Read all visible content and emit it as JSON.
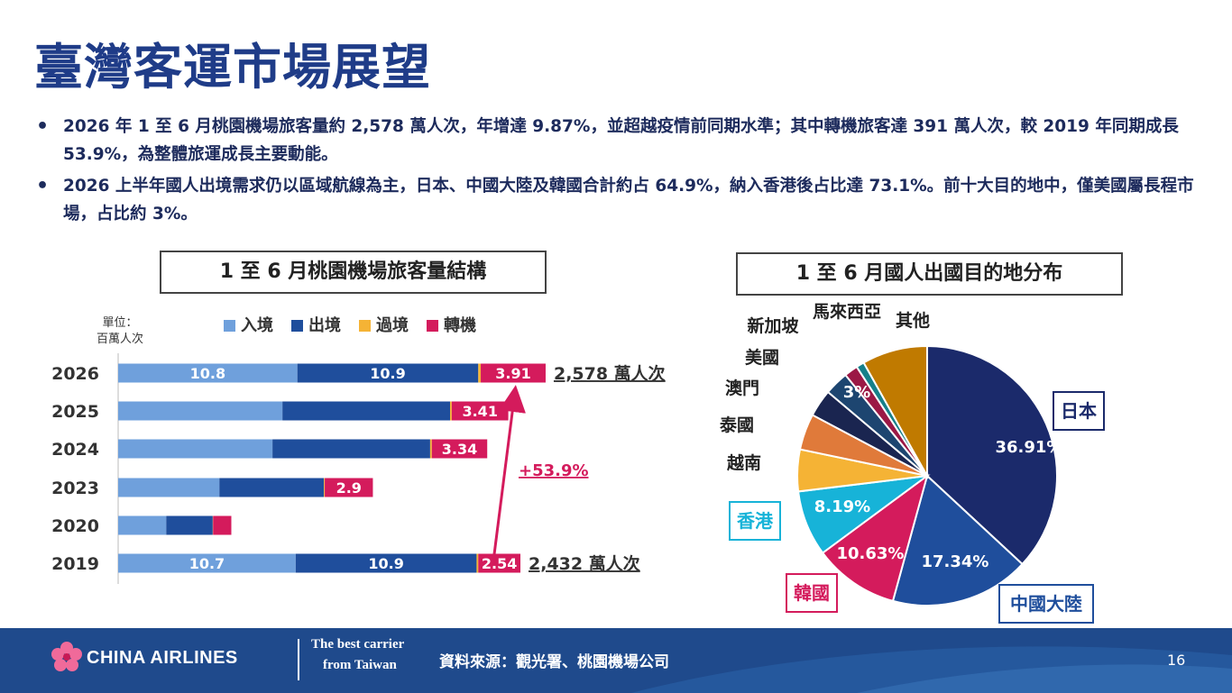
{
  "title": "臺灣客運市場展望",
  "bullets": [
    "2026 年 1 至 6 月桃園機場旅客量約 2,578 萬人次，年增達 9.87%，並超越疫情前同期水準；其中轉機旅客達 391 萬人次，較 2019 年同期成長 53.9%，為整體旅運成長主要動能。",
    "2026 上半年國人出境需求仍以區域航線為主，日本、中國大陸及韓國合計約占 64.9%，納入香港後占比達 73.1%。前十大目的地中，僅美國屬長程市場，占比約 3%。"
  ],
  "footer": {
    "logo": "CHINA AIRLINES",
    "tagline1": "The best carrier",
    "tagline2": "from Taiwan",
    "source": "資料來源：觀光署、桃園機場公司",
    "page": "16"
  },
  "colors": {
    "inbound": "#6fa0dc",
    "outbound": "#1f4e9c",
    "transit": "#f5b335",
    "transfer": "#d41b5c"
  },
  "chart_data": [
    {
      "type": "bar",
      "orientation": "horizontal",
      "stacked": true,
      "title": "1 至 6 月桃園機場旅客量結構",
      "unit_label": "單位：百萬人次",
      "legend": [
        "入境",
        "出境",
        "過境",
        "轉機"
      ],
      "categories": [
        "2026",
        "2025",
        "2024",
        "2023",
        "2020",
        "2019"
      ],
      "series": [
        {
          "name": "入境",
          "values": [
            10.8,
            9.9,
            9.3,
            6.1,
            2.9,
            10.7
          ],
          "labels": [
            "10.8",
            "",
            "",
            "",
            "",
            "10.7"
          ]
        },
        {
          "name": "出境",
          "values": [
            10.9,
            10.1,
            9.5,
            6.3,
            2.8,
            10.9
          ],
          "labels": [
            "10.9",
            "",
            "",
            "",
            "",
            "10.9"
          ]
        },
        {
          "name": "過境",
          "values": [
            0.15,
            0.1,
            0.1,
            0.05,
            0.02,
            0.1
          ],
          "labels": [
            "",
            "",
            "",
            "",
            "",
            ""
          ]
        },
        {
          "name": "轉機",
          "values": [
            3.91,
            3.41,
            3.34,
            2.9,
            1.1,
            2.54
          ],
          "labels": [
            "3.91",
            "3.41",
            "3.34",
            "2.9",
            "",
            "2.54"
          ]
        }
      ],
      "totals": {
        "2026": "2,578 萬人次",
        "2019": "2,432 萬人次"
      },
      "growth_annotation": "+53.9%",
      "xlim": [
        0,
        28
      ]
    },
    {
      "type": "pie",
      "title": "1 至 6 月國人出國目的地分布",
      "slices": [
        {
          "name": "日本",
          "value": 36.91,
          "color": "#1b2a6b",
          "label": "36.91%"
        },
        {
          "name": "中國大陸",
          "value": 17.34,
          "color": "#1f4e9c",
          "label": "17.34%"
        },
        {
          "name": "韓國",
          "value": 10.63,
          "color": "#d41b5c",
          "label": "10.63%"
        },
        {
          "name": "香港",
          "value": 8.19,
          "color": "#17b3d8",
          "label": "8.19%"
        },
        {
          "name": "越南",
          "value": 5.2,
          "color": "#f5b335",
          "label": ""
        },
        {
          "name": "泰國",
          "value": 4.5,
          "color": "#e07a3a",
          "label": ""
        },
        {
          "name": "澳門",
          "value": 3.4,
          "color": "#1a2550",
          "label": ""
        },
        {
          "name": "美國",
          "value": 3.0,
          "color": "#1d4570",
          "label": "3%"
        },
        {
          "name": "新加坡",
          "value": 1.7,
          "color": "#9b1845",
          "label": ""
        },
        {
          "name": "馬來西亞",
          "value": 1.0,
          "color": "#16808a",
          "label": ""
        },
        {
          "name": "其他",
          "value": 8.13,
          "color": "#c07a00",
          "label": ""
        }
      ]
    }
  ]
}
